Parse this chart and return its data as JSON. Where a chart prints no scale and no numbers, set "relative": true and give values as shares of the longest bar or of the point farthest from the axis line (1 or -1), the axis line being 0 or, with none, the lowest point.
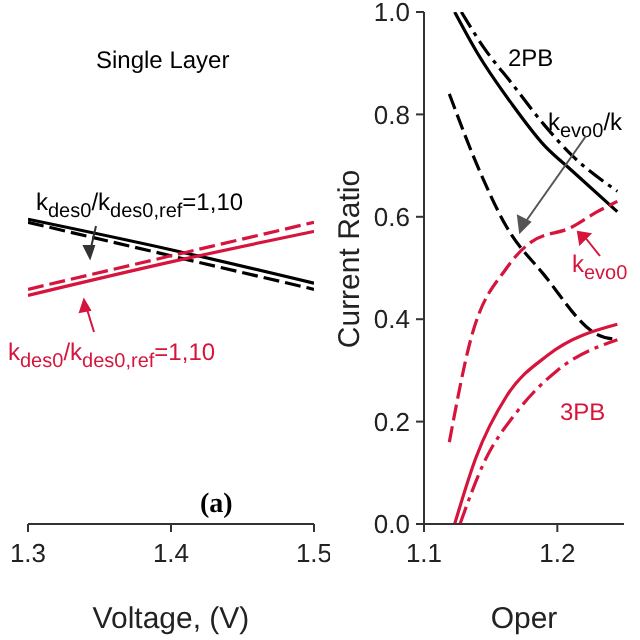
{
  "chart_data": [
    {
      "type": "line",
      "relative": true,
      "xlabel": "Voltage, (V)",
      "xlim": [
        1.3,
        1.5
      ],
      "xticks": [
        1.3,
        1.4,
        1.5
      ],
      "annotations": [
        "Single Layer",
        "k$_{des0}$/k$_{des0,ref}$=1,10",
        "k$_{des0}$/k$_{des0,ref}$=1,10",
        "(a)"
      ],
      "series": [
        {
          "color": "#000000",
          "line_style": "solid",
          "x": [
            1.3,
            1.4,
            1.5
          ],
          "values": [
            1,
            0.9,
            0.79
          ]
        },
        {
          "color": "#000000",
          "line_style": "dashed",
          "x": [
            1.3,
            1.4,
            1.5
          ],
          "values": [
            0.99,
            0.88,
            0.77
          ]
        },
        {
          "color": "#d6143c",
          "line_style": "solid",
          "x": [
            1.3,
            1.4,
            1.5
          ],
          "values": [
            0.75,
            0.86,
            0.96
          ]
        },
        {
          "color": "#d6143c",
          "line_style": "dashed",
          "x": [
            1.3,
            1.4,
            1.5
          ],
          "values": [
            0.77,
            0.88,
            0.99
          ]
        }
      ]
    },
    {
      "type": "line",
      "xlabel": "Oper",
      "ylabel": "Current Ratio",
      "xlim": [
        1.1,
        1.25
      ],
      "xticks": [
        1.1,
        1.2
      ],
      "ylim": [
        0,
        1
      ],
      "yticks": [
        {
          "value": 0,
          "label": "0.0"
        },
        0.2,
        0.4,
        0.6,
        0.8,
        {
          "value": 1,
          "label": "1.0"
        }
      ],
      "annotations": [
        "2PB",
        "3PB",
        "k$_{evo0}$/k",
        "k$_{evo0}$"
      ],
      "series": [
        {
          "color": "#000000",
          "line_style": "solid",
          "x": [
            1.123,
            1.14,
            1.166,
            1.19,
            1.211,
            1.245
          ],
          "values": [
            1.0,
            0.92,
            0.82,
            0.74,
            0.69,
            0.61
          ]
        },
        {
          "color": "#000000",
          "line_style": "dashdot",
          "x": [
            1.128,
            1.145,
            1.166,
            1.19,
            1.211,
            1.245
          ],
          "values": [
            1.0,
            0.93,
            0.86,
            0.78,
            0.72,
            0.65
          ]
        },
        {
          "color": "#000000",
          "line_style": "dashed",
          "x": [
            1.119,
            1.14,
            1.162,
            1.189,
            1.23,
            1.245
          ],
          "values": [
            0.84,
            0.7,
            0.58,
            0.49,
            0.37,
            0.36
          ]
        },
        {
          "color": "#d6143c",
          "line_style": "dashed",
          "x": [
            1.119,
            1.135,
            1.162,
            1.18,
            1.211,
            1.23,
            1.245
          ],
          "values": [
            0.16,
            0.36,
            0.5,
            0.55,
            0.58,
            0.61,
            0.63
          ]
        },
        {
          "color": "#d6143c",
          "line_style": "solid",
          "x": [
            1.123,
            1.139,
            1.162,
            1.193,
            1.245
          ],
          "values": [
            0.0,
            0.13,
            0.25,
            0.33,
            0.39
          ]
        },
        {
          "color": "#d6143c",
          "line_style": "dashdot",
          "x": [
            1.127,
            1.145,
            1.17,
            1.2,
            1.245
          ],
          "values": [
            0.0,
            0.12,
            0.22,
            0.3,
            0.36
          ]
        }
      ]
    }
  ]
}
